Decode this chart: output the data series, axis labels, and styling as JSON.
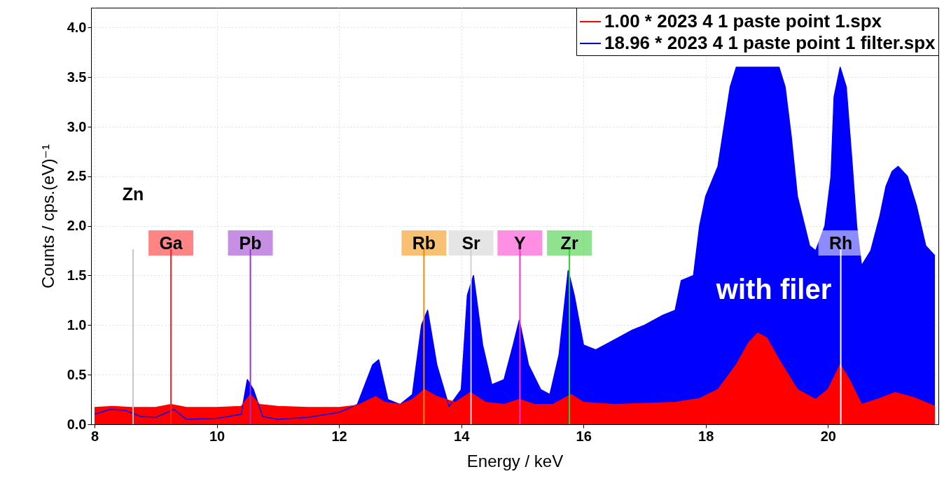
{
  "chart_data": {
    "type": "area",
    "xlabel": "Energy / keV",
    "ylabel": "Counts / cps.(eV)⁻¹",
    "xlim": [
      8,
      21.75
    ],
    "xticks": [
      8,
      10,
      12,
      14,
      16,
      18,
      20
    ],
    "ylim": [
      0,
      4.2
    ],
    "yticks": [
      {
        "value": 0,
        "label": "0.0"
      },
      0.5,
      {
        "value": 1,
        "label": "1.0"
      },
      1.5,
      {
        "value": 2,
        "label": "2.0"
      },
      2.5,
      {
        "value": 3,
        "label": "3.0"
      },
      3.5,
      {
        "value": 4,
        "label": "4.0"
      }
    ],
    "grid": true,
    "legend": "top right",
    "series": [
      {
        "name": "1.00 * 2023 4 1 paste point 1.spx",
        "color": "#ff0000",
        "x": [
          8,
          8.3,
          8.6,
          9,
          9.25,
          9.5,
          10,
          10.4,
          10.55,
          10.7,
          11,
          11.5,
          12,
          12.3,
          12.5,
          12.6,
          12.75,
          13,
          13.2,
          13.4,
          13.6,
          13.9,
          14.15,
          14.4,
          14.7,
          14.95,
          15.2,
          15.5,
          15.8,
          16,
          16.5,
          17,
          17.5,
          17.9,
          18.2,
          18.5,
          18.7,
          18.85,
          19.0,
          19.2,
          19.5,
          19.8,
          20.0,
          20.2,
          20.35,
          20.55,
          20.8,
          21.1,
          21.4,
          21.75
        ],
        "values": [
          0.17,
          0.18,
          0.17,
          0.17,
          0.2,
          0.17,
          0.17,
          0.18,
          0.3,
          0.2,
          0.18,
          0.17,
          0.17,
          0.19,
          0.25,
          0.28,
          0.22,
          0.2,
          0.25,
          0.35,
          0.28,
          0.22,
          0.32,
          0.22,
          0.2,
          0.25,
          0.2,
          0.2,
          0.3,
          0.22,
          0.2,
          0.21,
          0.22,
          0.26,
          0.35,
          0.6,
          0.82,
          0.92,
          0.87,
          0.65,
          0.35,
          0.25,
          0.35,
          0.6,
          0.45,
          0.2,
          0.25,
          0.32,
          0.27,
          0.18
        ]
      },
      {
        "name": "18.96 * 2023 4 1 paste point 1 filter.spx",
        "color": "#0000ff",
        "x": [
          8,
          8.25,
          8.5,
          8.75,
          9.0,
          9.3,
          9.5,
          10.0,
          10.4,
          10.5,
          10.6,
          10.75,
          11.0,
          11.5,
          12.0,
          12.3,
          12.55,
          12.65,
          12.8,
          13.0,
          13.2,
          13.35,
          13.45,
          13.6,
          13.8,
          14.0,
          14.1,
          14.2,
          14.35,
          14.5,
          14.7,
          14.85,
          14.95,
          15.1,
          15.3,
          15.45,
          15.6,
          15.75,
          15.85,
          16.0,
          16.2,
          16.5,
          16.8,
          17.0,
          17.3,
          17.5,
          17.6,
          17.8,
          17.9,
          18.0,
          18.2,
          18.3,
          18.4,
          18.5,
          18.9,
          19.2,
          19.3,
          19.4,
          19.5,
          19.7,
          19.8,
          19.95,
          20.05,
          20.1,
          20.2,
          20.3,
          20.4,
          20.47,
          20.55,
          20.7,
          20.85,
          20.95,
          21.05,
          21.15,
          21.3,
          21.45,
          21.6,
          21.75
        ],
        "values": [
          0.1,
          0.15,
          0.14,
          0.08,
          0.07,
          0.15,
          0.05,
          0.06,
          0.1,
          0.45,
          0.35,
          0.08,
          0.05,
          0.07,
          0.12,
          0.2,
          0.6,
          0.65,
          0.25,
          0.2,
          0.3,
          1.0,
          1.15,
          0.6,
          0.18,
          0.35,
          1.3,
          1.5,
          0.8,
          0.4,
          0.45,
          0.8,
          1.05,
          0.6,
          0.35,
          0.3,
          0.7,
          1.55,
          1.3,
          0.8,
          0.75,
          0.85,
          0.95,
          1.0,
          1.1,
          1.15,
          1.45,
          1.5,
          2.0,
          2.3,
          2.6,
          3.0,
          3.4,
          3.6,
          3.6,
          3.6,
          3.4,
          2.9,
          2.3,
          1.8,
          1.75,
          2.0,
          2.5,
          3.3,
          3.6,
          3.4,
          2.6,
          2.0,
          1.6,
          1.75,
          2.1,
          2.4,
          2.55,
          2.6,
          2.5,
          2.2,
          1.8,
          1.7
        ]
      }
    ],
    "ref_lines": [
      {
        "axis": "x",
        "value": 8.63,
        "label": "Zn",
        "color": "#c8c8c8"
      },
      {
        "axis": "x",
        "value": 9.25,
        "label": "Ga",
        "color": "#ff2020"
      },
      {
        "axis": "x",
        "value": 10.55,
        "label": "Pb",
        "color": "#9933cc"
      },
      {
        "axis": "x",
        "value": 13.39,
        "label": "Rb",
        "color": "#f08c00"
      },
      {
        "axis": "x",
        "value": 14.16,
        "label": "Sr",
        "color": "#d0d0d0"
      },
      {
        "axis": "x",
        "value": 14.96,
        "label": "Y",
        "color": "#ff33cc"
      },
      {
        "axis": "x",
        "value": 15.77,
        "label": "Zr",
        "color": "#33cc33"
      },
      {
        "axis": "x",
        "value": 20.21,
        "label": "Rh",
        "color": "#ffffff"
      }
    ],
    "annotations": [
      "with  filer"
    ]
  }
}
